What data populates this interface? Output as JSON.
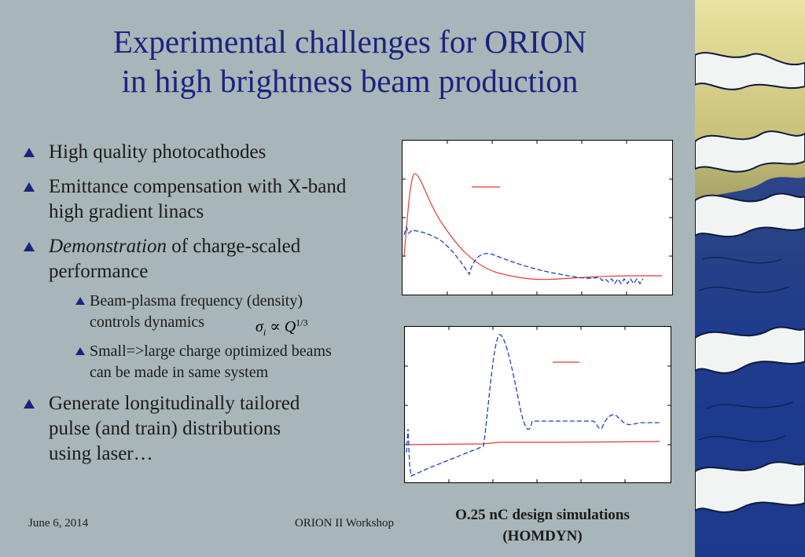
{
  "title": {
    "line1": "Experimental challenges for ORION",
    "line2": "in high brightness beam production"
  },
  "bullets": [
    {
      "text": "High quality photocathodes"
    },
    {
      "text": "Emittance compensation with X-band high gradient linacs"
    },
    {
      "italic": "Demonstration",
      "rest": " of charge-scaled performance"
    },
    {
      "text": "Generate longitudinally tailored pulse (and train) distributions using laser…"
    }
  ],
  "sub_bullets": [
    {
      "text": "Beam-plasma frequency (density) controls dynamics"
    },
    {
      "text": "Small=>large charge optimized beams can be made in same system"
    }
  ],
  "formula": {
    "lhs": "σ",
    "sub": "i",
    "rel": "∝",
    "rhs": "Q",
    "exp": "1/3"
  },
  "caption": {
    "line1": "O.25 nC design simulations",
    "line2": "(HOMDYN)"
  },
  "footer": {
    "date": "June 6, 2014",
    "center": "ORION II Workshop"
  },
  "colors": {
    "title": "#1a237e",
    "red_curve": "#e53935",
    "blue_curve": "#1e40c8",
    "background": "#a9b6b9"
  }
}
